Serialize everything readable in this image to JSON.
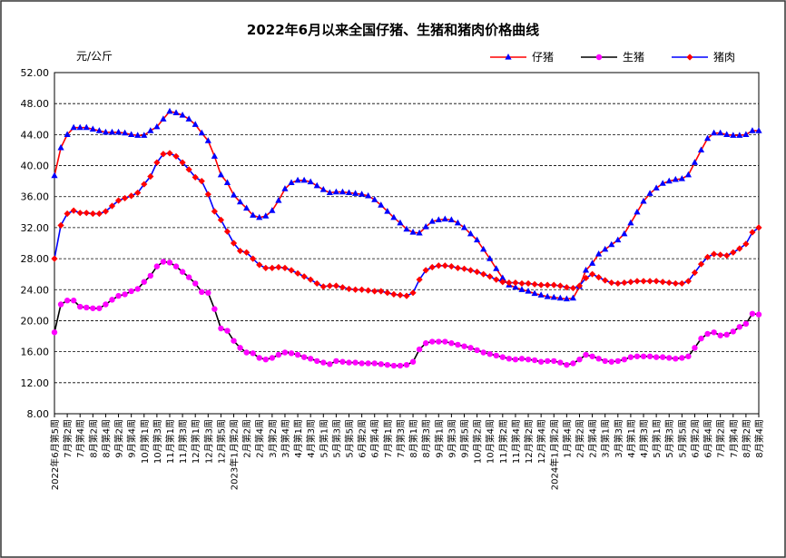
{
  "chart_data": {
    "type": "line",
    "title": "2022年6月以来全国仔猪、生猪和猪肉价格曲线",
    "y_label": "元/公斤",
    "categories": [
      "2022年6月第5周",
      null,
      "7月第2周",
      null,
      "7月第4周",
      null,
      "8月第2周",
      null,
      "8月第4周",
      null,
      "9月第2周",
      null,
      "9月第4周",
      null,
      "10月第1周",
      null,
      "10月第3周",
      null,
      "11月第1周",
      null,
      "11月第3周",
      null,
      "12月第1周",
      null,
      "12月第3周",
      null,
      "12月第5周",
      null,
      "2023年1月第2周",
      null,
      "2月第2周",
      null,
      "2月第4周",
      null,
      "3月第2周",
      null,
      "3月第4周",
      null,
      "4月第1周",
      null,
      "4月第3周",
      null,
      "5月第1周",
      null,
      "5月第3周",
      null,
      "5月第5周",
      null,
      "6月第2周",
      null,
      "6月第4周",
      null,
      "7月第1周",
      null,
      "7月第3周",
      null,
      "8月第1周",
      null,
      "8月第3周",
      null,
      "9月第1周",
      null,
      "9月第3周",
      null,
      "9月第5周",
      null,
      "10月第2周",
      null,
      "10月第4周",
      null,
      "11月第2周",
      null,
      "11月第4周",
      null,
      "12月第2周",
      null,
      "12月第4周",
      null,
      "2024年1月第2周",
      null,
      "1月第4周",
      null,
      "2月第2周",
      null,
      "2月第4周",
      null,
      "3月第1周",
      null,
      "3月第3周",
      null,
      "4月第1周",
      null,
      "4月第3周",
      null,
      "5月第1周",
      null,
      "5月第3周",
      null,
      "5月第5周",
      null,
      "6月第2周",
      null,
      "6月第4周",
      null,
      "7月第2周",
      null,
      "7月第4周",
      null,
      "8月第2周",
      null,
      "8月第4周"
    ],
    "series": [
      {
        "name": "仔猪",
        "color": "#ff0000",
        "marker": "triangle",
        "marker_color": "#0000ff",
        "values": [
          38.7,
          42.3,
          44.0,
          44.9,
          44.9,
          44.9,
          44.7,
          44.5,
          44.3,
          44.3,
          44.3,
          44.2,
          44.0,
          43.9,
          43.9,
          44.5,
          45.0,
          46.0,
          47.0,
          46.8,
          46.5,
          46.0,
          45.3,
          44.2,
          43.2,
          41.2,
          38.8,
          37.8,
          36.2,
          35.3,
          34.5,
          33.6,
          33.3,
          33.5,
          34.2,
          35.5,
          37.0,
          37.8,
          38.1,
          38.1,
          37.9,
          37.4,
          36.9,
          36.5,
          36.6,
          36.6,
          36.5,
          36.4,
          36.3,
          36.1,
          35.6,
          34.9,
          34.1,
          33.3,
          32.6,
          31.8,
          31.4,
          31.3,
          32.1,
          32.8,
          33.0,
          33.1,
          33.0,
          32.6,
          32.0,
          31.2,
          30.4,
          29.2,
          28.0,
          26.7,
          25.5,
          24.6,
          24.3,
          24.0,
          23.8,
          23.5,
          23.3,
          23.1,
          23.0,
          22.9,
          22.8,
          22.9,
          24.4,
          26.5,
          27.4,
          28.6,
          29.2,
          29.8,
          30.4,
          31.2,
          32.6,
          34.0,
          35.4,
          36.4,
          37.1,
          37.7,
          38.0,
          38.2,
          38.3,
          38.8,
          40.4,
          42.0,
          43.5,
          44.2,
          44.2,
          44.0,
          43.9,
          43.9,
          44.0,
          44.5,
          44.5
        ]
      },
      {
        "name": "生猪",
        "color": "#000000",
        "marker": "circle",
        "marker_color": "#ff00ff",
        "values": [
          18.5,
          22.1,
          22.6,
          22.6,
          21.8,
          21.7,
          21.6,
          21.6,
          22.1,
          22.7,
          23.2,
          23.4,
          23.8,
          24.1,
          25.0,
          25.8,
          27.0,
          27.6,
          27.5,
          27.0,
          26.3,
          25.6,
          24.8,
          23.7,
          23.6,
          21.5,
          19.0,
          18.7,
          17.4,
          16.5,
          15.9,
          15.8,
          15.2,
          15.0,
          15.2,
          15.6,
          15.9,
          15.8,
          15.6,
          15.3,
          15.1,
          14.8,
          14.6,
          14.4,
          14.8,
          14.7,
          14.6,
          14.6,
          14.5,
          14.5,
          14.5,
          14.4,
          14.3,
          14.2,
          14.2,
          14.3,
          14.7,
          16.3,
          17.1,
          17.3,
          17.3,
          17.3,
          17.1,
          16.9,
          16.7,
          16.5,
          16.2,
          15.9,
          15.7,
          15.5,
          15.3,
          15.1,
          15.0,
          15.1,
          15.0,
          14.9,
          14.7,
          14.8,
          14.8,
          14.6,
          14.3,
          14.5,
          15.0,
          15.6,
          15.4,
          15.1,
          14.8,
          14.7,
          14.8,
          15.0,
          15.3,
          15.4,
          15.4,
          15.4,
          15.3,
          15.3,
          15.2,
          15.1,
          15.2,
          15.4,
          16.5,
          17.7,
          18.3,
          18.5,
          18.1,
          18.2,
          18.6,
          19.2,
          19.6,
          20.9,
          20.8
        ]
      },
      {
        "name": "猪肉",
        "color": "#0000ff",
        "marker": "diamond",
        "marker_color": "#ff0000",
        "values": [
          28.0,
          32.3,
          33.8,
          34.2,
          33.9,
          33.9,
          33.8,
          33.8,
          34.1,
          34.8,
          35.5,
          35.8,
          36.1,
          36.5,
          37.6,
          38.6,
          40.4,
          41.5,
          41.6,
          41.2,
          40.4,
          39.5,
          38.5,
          38.0,
          36.3,
          34.1,
          33.0,
          31.5,
          30.0,
          29.0,
          28.8,
          28.0,
          27.2,
          26.8,
          26.8,
          26.9,
          26.8,
          26.5,
          26.1,
          25.7,
          25.3,
          24.8,
          24.4,
          24.5,
          24.5,
          24.3,
          24.1,
          24.0,
          24.0,
          23.9,
          23.8,
          23.8,
          23.6,
          23.4,
          23.3,
          23.2,
          23.6,
          25.3,
          26.5,
          26.9,
          27.1,
          27.1,
          27.0,
          26.8,
          26.7,
          26.5,
          26.3,
          26.0,
          25.7,
          25.3,
          25.0,
          24.9,
          24.9,
          24.8,
          24.8,
          24.7,
          24.6,
          24.6,
          24.6,
          24.5,
          24.3,
          24.2,
          24.5,
          25.5,
          26.0,
          25.6,
          25.2,
          24.9,
          24.8,
          24.9,
          25.0,
          25.1,
          25.1,
          25.1,
          25.1,
          25.0,
          24.9,
          24.8,
          24.8,
          25.1,
          26.2,
          27.3,
          28.2,
          28.6,
          28.5,
          28.4,
          28.8,
          29.3,
          29.9,
          31.4,
          32.0
        ]
      }
    ],
    "ylim": [
      8,
      52
    ],
    "yticks": [
      {
        "value": 8,
        "label": "8.00"
      },
      {
        "value": 12,
        "label": "12.00"
      },
      {
        "value": 16,
        "label": "16.00"
      },
      {
        "value": 20,
        "label": "20.00"
      },
      {
        "value": 24,
        "label": "24.00"
      },
      {
        "value": 28,
        "label": "28.00"
      },
      {
        "value": 32,
        "label": "32.00"
      },
      {
        "value": 36,
        "label": "36.00"
      },
      {
        "value": 40,
        "label": "40.00"
      },
      {
        "value": 44,
        "label": "44.00"
      },
      {
        "value": 48,
        "label": "48.00"
      },
      {
        "value": 52,
        "label": "52.00"
      }
    ],
    "grid": true,
    "legend": "top-right"
  }
}
